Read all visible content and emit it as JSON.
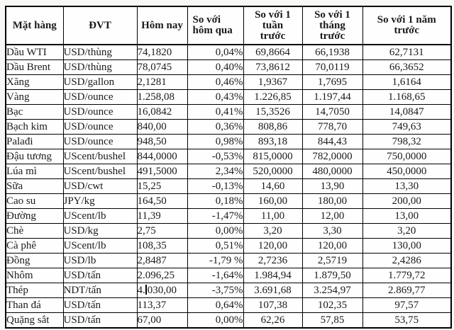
{
  "chart_data": {
    "type": "table",
    "columns": [
      "Mặt hàng",
      "ĐVT",
      "Hôm nay",
      "So với hôm qua",
      "So với 1 tuần trước",
      "So với 1 tháng trước",
      "So với 1 năm trước"
    ],
    "rows": [
      [
        "Dầu WTI",
        "USD/thùng",
        "74,1820",
        "0,04%",
        "69,8664",
        "66,1938",
        "62,7131"
      ],
      [
        "Dầu Brent",
        "USD/thùng",
        "78,0745",
        "0,40%",
        "73,8612",
        "70,0119",
        "66,3652"
      ],
      [
        "Xăng",
        "USD/gallon",
        "2,1281",
        "0,46%",
        "1,9367",
        "1,7695",
        "1,6164"
      ],
      [
        "Vàng",
        "USD/ounce",
        "1.258,08",
        "0,43%",
        "1.226,85",
        "1.197,44",
        "1.168,65"
      ],
      [
        "Bạc",
        "USD/ounce",
        "16,0842",
        "0,41%",
        "15,3526",
        "14,7050",
        "14,0847"
      ],
      [
        "Bạch kim",
        "USD/ounce",
        "840,00",
        "0,36%",
        "808,86",
        "778,70",
        "749,63"
      ],
      [
        "Palađi",
        "USD/ounce",
        "948,50",
        "0,98%",
        "893,18",
        "844,43",
        "798,32"
      ],
      [
        "Đậu tương",
        "UScent/bushel",
        "844,0000",
        "-0,53%",
        "815,0000",
        "782,0000",
        "750,0000"
      ],
      [
        "Lúa mì",
        "UScent/bushel",
        "491,5000",
        "2,34%",
        "520,0000",
        "480,0000",
        "450,0000"
      ],
      [
        "Sữa",
        "USD/cwt",
        "15,25",
        "-0,13%",
        "14,60",
        "13,90",
        "13,30"
      ],
      [
        "Cao su",
        "JPY/kg",
        "164,50",
        "0,18%",
        "160,00",
        "180,00",
        "200,00"
      ],
      [
        "Đường",
        "UScent/lb",
        "11,39",
        "-1,47%",
        "11,00",
        "12,00",
        "13,00"
      ],
      [
        "Chè",
        "USD/kg",
        "2,75",
        "0,00%",
        "3,20",
        "3,30",
        "3,20"
      ],
      [
        "Cà phê",
        "UScent/lb",
        "108,35",
        "0,51%",
        "120,00",
        "120,00",
        "130,00"
      ],
      [
        "Đồng",
        "USD/lb",
        "2,8487",
        "-1,79 %",
        "2,7236",
        "2,5719",
        "2,4286"
      ],
      [
        "Nhôm",
        "USD/tấn",
        "2.096,25",
        "-1,64%",
        "1.984,94",
        "1.879,50",
        "1.779,72"
      ],
      [
        "Thép",
        "NDT/tấn",
        "4.030,00",
        "-3,75%",
        "3.691,68",
        "3.254,97",
        "2.869,77"
      ],
      [
        "Than đá",
        "USD/tấn",
        "113,37",
        "0,64%",
        "107,38",
        "102,35",
        "97,57"
      ],
      [
        "Quặng sắt",
        "USD/tấn",
        "67,00",
        "0,00%",
        "62,26",
        "57,85",
        "53,75"
      ]
    ],
    "text_caret": {
      "row_index": 16,
      "col_index": 2,
      "text_offset": 2
    },
    "layout": {
      "grid": "on",
      "header_position": "top"
    }
  },
  "colors": {
    "border": "#000000",
    "text": "#1a1a1a",
    "table_background": "#fefefe",
    "page_background": "#f8f8f7"
  }
}
